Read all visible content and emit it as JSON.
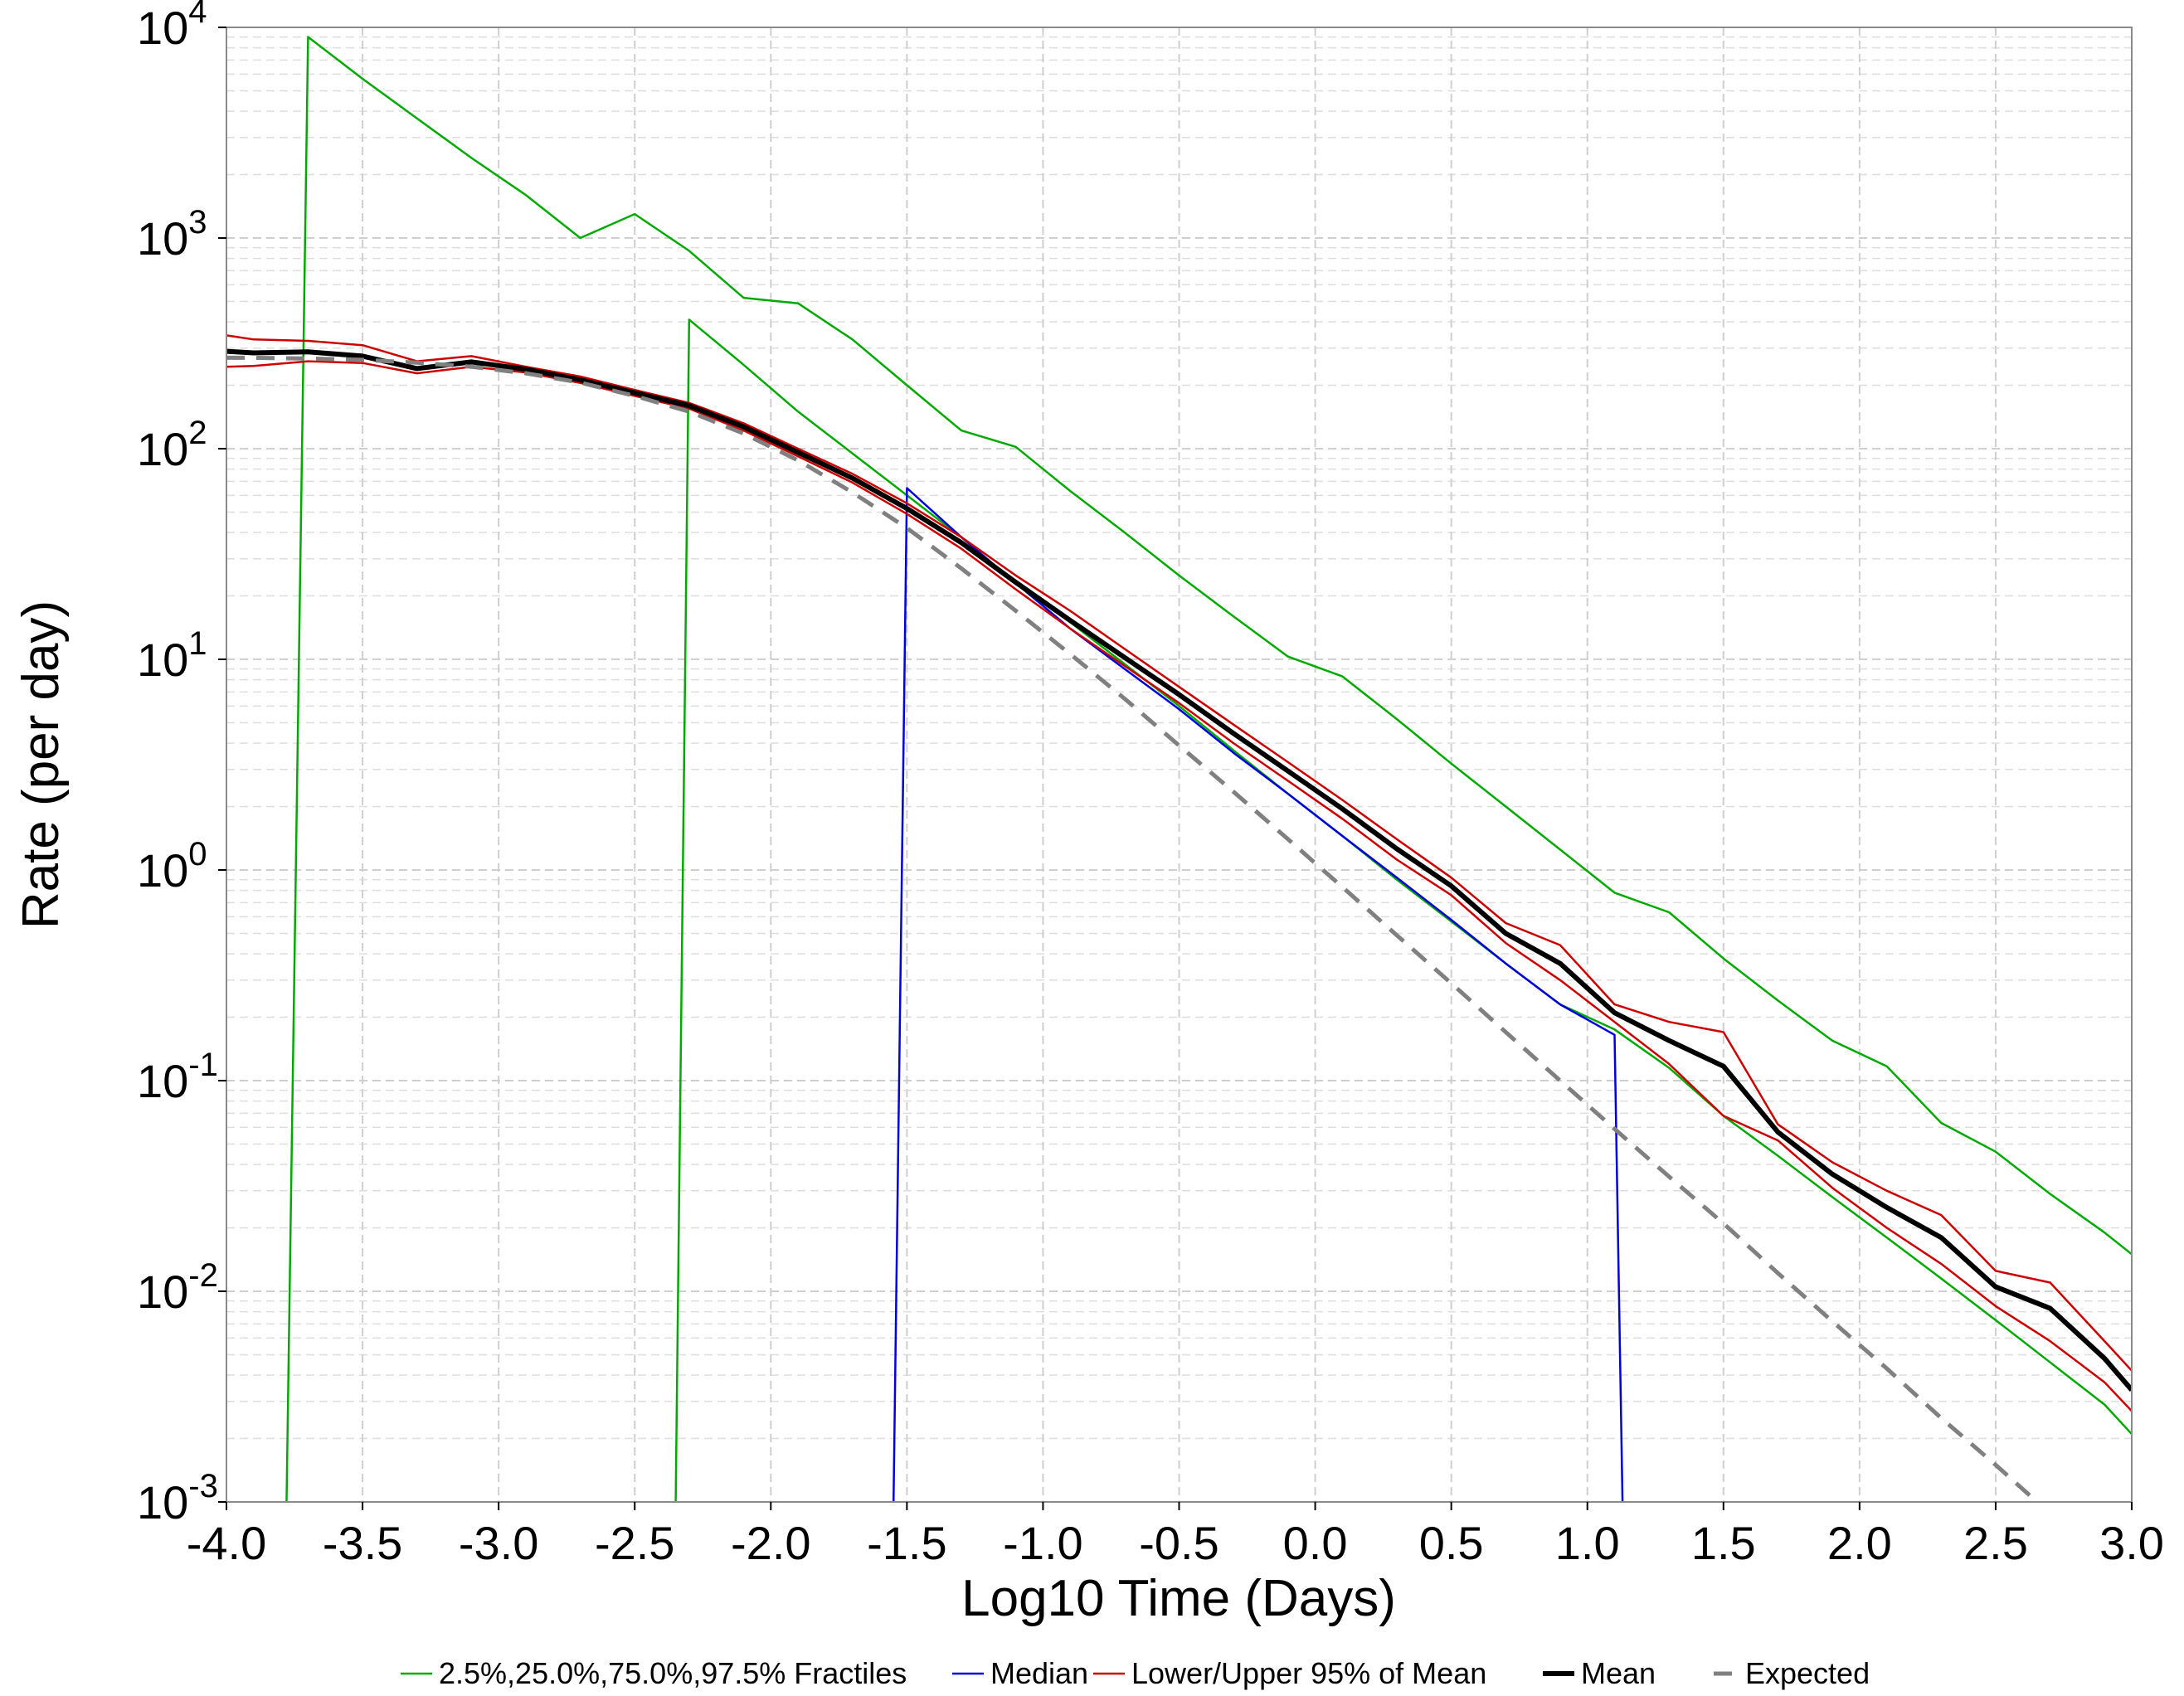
{
  "chart_data": {
    "type": "line",
    "title": "",
    "xlabel": "Log10 Time (Days)",
    "ylabel": "Rate (per day)",
    "xlim": [
      -4.0,
      3.0
    ],
    "ylim_log10": [
      -3,
      4
    ],
    "yscale": "log",
    "grid": true,
    "legend_position": "bottom",
    "x_ticks": [
      "-4.0",
      "-3.5",
      "-3.0",
      "-2.5",
      "-2.0",
      "-1.5",
      "-1.0",
      "-0.5",
      "0.0",
      "0.5",
      "1.0",
      "1.5",
      "2.0",
      "2.5",
      "3.0"
    ],
    "y_ticks": [
      {
        "base": "10",
        "exp": "-3",
        "value": 0.001
      },
      {
        "base": "10",
        "exp": "-2",
        "value": 0.01
      },
      {
        "base": "10",
        "exp": "-1",
        "value": 0.1
      },
      {
        "base": "10",
        "exp": "0",
        "value": 1
      },
      {
        "base": "10",
        "exp": "1",
        "value": 10
      },
      {
        "base": "10",
        "exp": "2",
        "value": 100
      },
      {
        "base": "10",
        "exp": "3",
        "value": 1000
      },
      {
        "base": "10",
        "exp": "4",
        "value": 10000
      }
    ],
    "legend": [
      {
        "label": "2.5%,25.0%,75.0%,97.5% Fractiles",
        "color": "#00aa00",
        "style": "solid"
      },
      {
        "label": "Median",
        "color": "#0000dd",
        "style": "solid"
      },
      {
        "label": "Lower/Upper 95% of Mean",
        "color": "#cc0000",
        "style": "solid"
      },
      {
        "label": "Mean",
        "color": "#000000",
        "style": "bold"
      },
      {
        "label": "Expected",
        "color": "#808080",
        "style": "dashed"
      }
    ],
    "series": [
      {
        "legend_group": "fractiles",
        "color": "#00aa00",
        "width": 2.5,
        "dash": "",
        "points": [
          [
            -3.78,
            0.00085
          ],
          [
            -3.7,
            9000
          ],
          [
            -3.5,
            5700
          ],
          [
            -3.3,
            3700
          ],
          [
            -3.1,
            2400
          ],
          [
            -2.9,
            1600
          ],
          [
            -2.7,
            1000
          ],
          [
            -2.5,
            1300
          ],
          [
            -2.3,
            870
          ],
          [
            -2.1,
            520
          ],
          [
            -1.9,
            490
          ],
          [
            -1.7,
            330
          ],
          [
            -1.5,
            200
          ],
          [
            -1.3,
            122
          ],
          [
            -1.1,
            102
          ],
          [
            -0.9,
            63
          ],
          [
            -0.7,
            40
          ],
          [
            -0.5,
            25
          ],
          [
            -0.3,
            16
          ],
          [
            -0.1,
            10.3
          ],
          [
            0.1,
            8.3
          ],
          [
            0.3,
            5.2
          ],
          [
            0.5,
            3.2
          ],
          [
            0.7,
            2.0
          ],
          [
            0.9,
            1.25
          ],
          [
            1.1,
            0.78
          ],
          [
            1.3,
            0.63
          ],
          [
            1.5,
            0.38
          ],
          [
            1.7,
            0.24
          ],
          [
            1.9,
            0.155
          ],
          [
            2.1,
            0.117
          ],
          [
            2.3,
            0.063
          ],
          [
            2.5,
            0.046
          ],
          [
            2.7,
            0.029
          ],
          [
            2.9,
            0.019
          ],
          [
            3.0,
            0.015
          ]
        ]
      },
      {
        "legend_group": "fractiles",
        "color": "#00aa00",
        "width": 2.5,
        "dash": "",
        "points": [
          [
            -2.35,
            0.00085
          ],
          [
            -2.3,
            410
          ],
          [
            -2.1,
            250
          ],
          [
            -1.9,
            150
          ],
          [
            -1.7,
            95
          ],
          [
            -1.5,
            60
          ],
          [
            -1.3,
            38
          ],
          [
            -1.1,
            23
          ],
          [
            -0.9,
            15
          ],
          [
            -0.7,
            9.5
          ],
          [
            -0.5,
            6.0
          ],
          [
            -0.3,
            3.7
          ],
          [
            -0.1,
            2.3
          ],
          [
            0.1,
            1.45
          ],
          [
            0.3,
            0.9
          ],
          [
            0.5,
            0.57
          ],
          [
            0.7,
            0.36
          ],
          [
            0.9,
            0.23
          ],
          [
            1.1,
            0.175
          ],
          [
            1.3,
            0.115
          ],
          [
            1.5,
            0.068
          ],
          [
            1.7,
            0.044
          ],
          [
            1.9,
            0.028
          ],
          [
            2.1,
            0.018
          ],
          [
            2.3,
            0.0115
          ],
          [
            2.5,
            0.0073
          ],
          [
            2.7,
            0.0046
          ],
          [
            2.9,
            0.0029
          ],
          [
            3.0,
            0.0021
          ]
        ]
      },
      {
        "legend_group": "median",
        "color": "#0000dd",
        "width": 2.5,
        "dash": "",
        "points": [
          [
            -1.55,
            0.00085
          ],
          [
            -1.5,
            65
          ],
          [
            -1.3,
            38
          ],
          [
            -1.1,
            23
          ],
          [
            -0.9,
            14
          ],
          [
            -0.7,
            9.0
          ],
          [
            -0.5,
            5.8
          ],
          [
            -0.3,
            3.6
          ],
          [
            -0.1,
            2.3
          ],
          [
            0.1,
            1.45
          ],
          [
            0.3,
            0.92
          ],
          [
            0.5,
            0.58
          ],
          [
            0.7,
            0.36
          ],
          [
            0.9,
            0.23
          ],
          [
            1.1,
            0.165
          ],
          [
            1.13,
            0.00085
          ]
        ]
      },
      {
        "legend_group": "ci",
        "color": "#cc0000",
        "width": 2.5,
        "dash": "",
        "points": [
          [
            -4.0,
            345
          ],
          [
            -3.9,
            330
          ],
          [
            -3.7,
            325
          ],
          [
            -3.5,
            310
          ],
          [
            -3.3,
            260
          ],
          [
            -3.1,
            275
          ],
          [
            -2.9,
            245
          ],
          [
            -2.7,
            220
          ],
          [
            -2.5,
            190
          ],
          [
            -2.3,
            165
          ],
          [
            -2.1,
            132
          ],
          [
            -1.9,
            100
          ],
          [
            -1.7,
            76
          ],
          [
            -1.5,
            55
          ],
          [
            -1.3,
            38
          ],
          [
            -1.1,
            25
          ],
          [
            -0.9,
            17
          ],
          [
            -0.7,
            11.2
          ],
          [
            -0.5,
            7.4
          ],
          [
            -0.3,
            4.9
          ],
          [
            -0.1,
            3.25
          ],
          [
            0.1,
            2.15
          ],
          [
            0.3,
            1.4
          ],
          [
            0.5,
            0.92
          ],
          [
            0.7,
            0.56
          ],
          [
            0.9,
            0.44
          ],
          [
            1.1,
            0.23
          ],
          [
            1.3,
            0.19
          ],
          [
            1.5,
            0.17
          ],
          [
            1.7,
            0.062
          ],
          [
            1.9,
            0.041
          ],
          [
            2.1,
            0.03
          ],
          [
            2.3,
            0.023
          ],
          [
            2.5,
            0.0125
          ],
          [
            2.7,
            0.011
          ],
          [
            2.9,
            0.0058
          ],
          [
            3.0,
            0.0042
          ]
        ]
      },
      {
        "legend_group": "ci",
        "color": "#cc0000",
        "width": 2.5,
        "dash": "",
        "points": [
          [
            -4.0,
            245
          ],
          [
            -3.9,
            247
          ],
          [
            -3.7,
            260
          ],
          [
            -3.5,
            255
          ],
          [
            -3.3,
            228
          ],
          [
            -3.1,
            245
          ],
          [
            -2.9,
            230
          ],
          [
            -2.7,
            205
          ],
          [
            -2.5,
            178
          ],
          [
            -2.3,
            155
          ],
          [
            -2.1,
            122
          ],
          [
            -1.9,
            92
          ],
          [
            -1.7,
            69
          ],
          [
            -1.5,
            49
          ],
          [
            -1.3,
            33.5
          ],
          [
            -1.1,
            21.5
          ],
          [
            -0.9,
            14
          ],
          [
            -0.7,
            9.3
          ],
          [
            -0.5,
            6.2
          ],
          [
            -0.3,
            4.0
          ],
          [
            -0.1,
            2.65
          ],
          [
            0.1,
            1.75
          ],
          [
            0.3,
            1.12
          ],
          [
            0.5,
            0.76
          ],
          [
            0.7,
            0.45
          ],
          [
            0.9,
            0.3
          ],
          [
            1.1,
            0.19
          ],
          [
            1.3,
            0.12
          ],
          [
            1.5,
            0.068
          ],
          [
            1.7,
            0.052
          ],
          [
            1.9,
            0.031
          ],
          [
            2.1,
            0.02
          ],
          [
            2.3,
            0.0135
          ],
          [
            2.5,
            0.0085
          ],
          [
            2.7,
            0.0058
          ],
          [
            2.9,
            0.0037
          ],
          [
            3.0,
            0.0027
          ]
        ]
      },
      {
        "legend_group": "mean",
        "color": "#000000",
        "width": 6,
        "dash": "",
        "points": [
          [
            -4.0,
            290
          ],
          [
            -3.9,
            285
          ],
          [
            -3.7,
            288
          ],
          [
            -3.5,
            275
          ],
          [
            -3.3,
            240
          ],
          [
            -3.1,
            258
          ],
          [
            -2.9,
            238
          ],
          [
            -2.7,
            212
          ],
          [
            -2.5,
            184
          ],
          [
            -2.3,
            160
          ],
          [
            -2.1,
            127
          ],
          [
            -1.9,
            96
          ],
          [
            -1.7,
            72.5
          ],
          [
            -1.5,
            52
          ],
          [
            -1.3,
            35.8
          ],
          [
            -1.1,
            23.2
          ],
          [
            -0.9,
            15.3
          ],
          [
            -0.7,
            10.2
          ],
          [
            -0.5,
            6.8
          ],
          [
            -0.3,
            4.45
          ],
          [
            -0.1,
            2.95
          ],
          [
            0.1,
            1.95
          ],
          [
            0.3,
            1.26
          ],
          [
            0.5,
            0.84
          ],
          [
            0.7,
            0.5
          ],
          [
            0.9,
            0.36
          ],
          [
            1.1,
            0.21
          ],
          [
            1.3,
            0.155
          ],
          [
            1.5,
            0.117
          ],
          [
            1.7,
            0.057
          ],
          [
            1.9,
            0.036
          ],
          [
            2.1,
            0.025
          ],
          [
            2.3,
            0.018
          ],
          [
            2.5,
            0.0105
          ],
          [
            2.7,
            0.0083
          ],
          [
            2.9,
            0.0048
          ],
          [
            3.0,
            0.0034
          ]
        ]
      },
      {
        "legend_group": "expected",
        "color": "#808080",
        "width": 5,
        "dash": "22 14",
        "points": [
          [
            -4.0,
            270
          ],
          [
            -3.9,
            270
          ],
          [
            -3.7,
            268
          ],
          [
            -3.5,
            264
          ],
          [
            -3.3,
            256
          ],
          [
            -3.1,
            245
          ],
          [
            -2.9,
            228
          ],
          [
            -2.7,
            206
          ],
          [
            -2.5,
            178
          ],
          [
            -2.3,
            150
          ],
          [
            -2.1,
            118
          ],
          [
            -1.9,
            88
          ],
          [
            -1.7,
            62
          ],
          [
            -1.5,
            42
          ],
          [
            -1.3,
            27
          ],
          [
            -1.1,
            17
          ],
          [
            -0.9,
            10.6
          ],
          [
            -0.7,
            6.5
          ],
          [
            -0.5,
            3.9
          ],
          [
            -0.3,
            2.35
          ],
          [
            -0.1,
            1.4
          ],
          [
            0.1,
            0.83
          ],
          [
            0.3,
            0.49
          ],
          [
            0.5,
            0.29
          ],
          [
            0.7,
            0.17
          ],
          [
            0.9,
            0.1
          ],
          [
            1.1,
            0.059
          ],
          [
            1.3,
            0.035
          ],
          [
            1.5,
            0.021
          ],
          [
            1.7,
            0.0122
          ],
          [
            1.9,
            0.0072
          ],
          [
            2.1,
            0.0043
          ],
          [
            2.3,
            0.0025
          ],
          [
            2.5,
            0.0015
          ],
          [
            2.7,
            0.00088
          ],
          [
            2.9,
            0.00052
          ],
          [
            3.0,
            0.0004
          ]
        ]
      }
    ]
  }
}
